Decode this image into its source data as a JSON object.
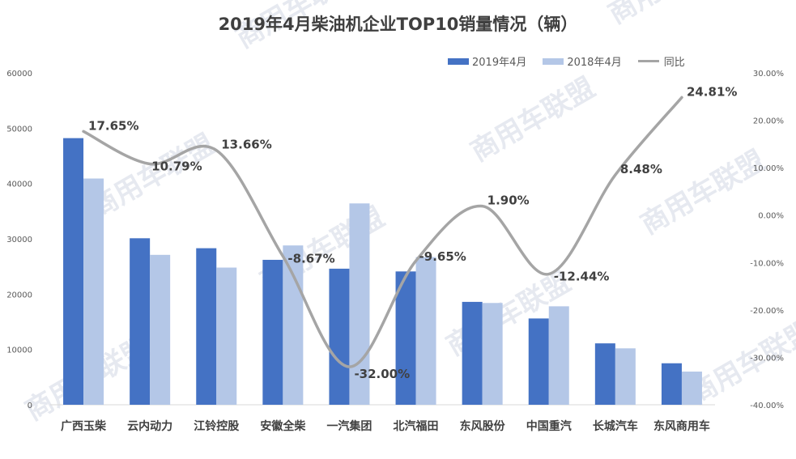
{
  "chart_data": {
    "type": "bar",
    "title": "2019年4月柴油机企业TOP10销量情况（辆）",
    "categories": [
      "广西玉柴",
      "云内动力",
      "江铃控股",
      "安徽全柴",
      "一汽集团",
      "北汽福田",
      "东风股份",
      "中国重汽",
      "长城汽车",
      "东风商用车"
    ],
    "series": [
      {
        "name": "2019年4月",
        "type": "bar",
        "axis": "left",
        "color": "#4472c4",
        "values": [
          48200,
          30100,
          28300,
          26200,
          24600,
          24100,
          18600,
          15600,
          11100,
          7500
        ]
      },
      {
        "name": "2018年4月",
        "type": "bar",
        "axis": "left",
        "color": "#b4c7e7",
        "values": [
          40900,
          27100,
          24800,
          28800,
          36400,
          26700,
          18400,
          17800,
          10200,
          6000
        ]
      },
      {
        "name": "同比",
        "type": "line",
        "axis": "right",
        "color": "#a5a5a5",
        "values": [
          17.65,
          10.79,
          13.66,
          -8.67,
          -32.0,
          -9.65,
          1.9,
          -12.44,
          8.48,
          24.81
        ],
        "labels": [
          "17.65%",
          "10.79%",
          "13.66%",
          "-8.67%",
          "-32.00%",
          "-9.65%",
          "1.90%",
          "-12.44%",
          "8.48%",
          "24.81%"
        ]
      }
    ],
    "ylim": [
      0,
      60000
    ],
    "yticks": [
      "0",
      "10000",
      "20000",
      "30000",
      "40000",
      "50000",
      "60000"
    ],
    "y2lim": [
      -40,
      30
    ],
    "y2ticks": [
      "-40.00%",
      "-30.00%",
      "-20.00%",
      "-10.00%",
      "0.00%",
      "10.00%",
      "20.00%",
      "30.00%"
    ],
    "grid": false,
    "legend_position": "top-right"
  },
  "watermark_text": "商用车联盟"
}
